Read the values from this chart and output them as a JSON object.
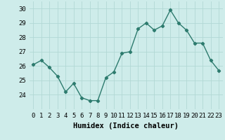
{
  "x": [
    0,
    1,
    2,
    3,
    4,
    5,
    6,
    7,
    8,
    9,
    10,
    11,
    12,
    13,
    14,
    15,
    16,
    17,
    18,
    19,
    20,
    21,
    22,
    23
  ],
  "y": [
    26.1,
    26.4,
    25.9,
    25.3,
    24.2,
    24.8,
    23.8,
    23.6,
    23.6,
    25.2,
    25.6,
    26.9,
    27.0,
    28.6,
    29.0,
    28.5,
    28.8,
    29.9,
    29.0,
    28.5,
    27.6,
    27.6,
    26.4,
    25.7
  ],
  "line_color": "#2d7b6e",
  "marker": "D",
  "markersize": 2.2,
  "linewidth": 1.0,
  "xlabel": "Humidex (Indice chaleur)",
  "ylim": [
    23.0,
    30.5
  ],
  "xlim": [
    -0.5,
    23.5
  ],
  "yticks": [
    24,
    25,
    26,
    27,
    28,
    29,
    30
  ],
  "xtick_labels": [
    "0",
    "1",
    "2",
    "3",
    "4",
    "5",
    "6",
    "7",
    "8",
    "9",
    "10",
    "11",
    "12",
    "13",
    "14",
    "15",
    "16",
    "17",
    "18",
    "19",
    "20",
    "21",
    "22",
    "23"
  ],
  "bg_color": "#ceecea",
  "grid_color": "#b2d8d5",
  "xlabel_fontsize": 7.5,
  "tick_fontsize": 6.5
}
